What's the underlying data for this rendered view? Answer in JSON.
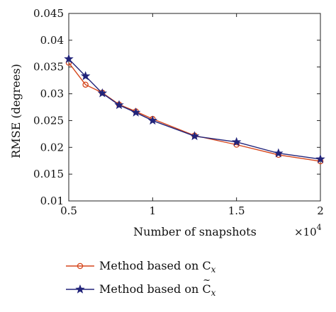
{
  "chart_data": {
    "type": "line",
    "xlabel": "Number of snapshots",
    "ylabel": "RMSE (degrees)",
    "x_multiplier_label": "×10",
    "x_multiplier_exponent": "4",
    "xlim": [
      0.5,
      2.0
    ],
    "ylim": [
      0.01,
      0.045
    ],
    "xticks": [
      0.5,
      1.0,
      1.5,
      2.0
    ],
    "xtick_labels": [
      "0.5",
      "1",
      "1.5",
      "2"
    ],
    "yticks": [
      0.01,
      0.015,
      0.02,
      0.025,
      0.03,
      0.035,
      0.04,
      0.045
    ],
    "ytick_labels": [
      "0.01",
      "0.015",
      "0.02",
      "0.025",
      "0.03",
      "0.035",
      "0.04",
      "0.045"
    ],
    "grid": false,
    "legend_position": "below",
    "x": [
      0.5,
      0.6,
      0.7,
      0.8,
      0.9,
      1.0,
      1.25,
      1.5,
      1.75,
      2.0
    ],
    "series": [
      {
        "name_prefix": "Method based on C",
        "name_subscript": "x",
        "name_accent": "",
        "marker": "circle",
        "color": "#d6471d",
        "values": [
          0.0358,
          0.0317,
          0.0302,
          0.028,
          0.0267,
          0.0253,
          0.0222,
          0.0205,
          0.0186,
          0.0174
        ]
      },
      {
        "name_prefix": "Method based on C",
        "name_subscript": "x",
        "name_accent": "~",
        "marker": "star",
        "color": "#22247a",
        "values": [
          0.0365,
          0.0333,
          0.0301,
          0.0279,
          0.0265,
          0.025,
          0.0221,
          0.021,
          0.0189,
          0.0178
        ]
      }
    ]
  }
}
